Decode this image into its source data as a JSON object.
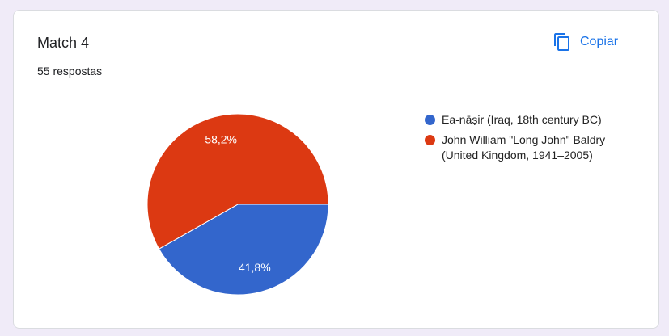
{
  "header": {
    "title": "Match 4",
    "subtitle": "55 respostas",
    "button": "Copiar"
  },
  "chart_data": {
    "type": "pie",
    "categories": [
      "Ea-nāṣir (Iraq, 18th century BC)",
      "John William \"Long John\" Baldry (United Kingdom, 1941–2005)"
    ],
    "values": [
      41.8,
      58.2
    ],
    "value_labels": [
      "41,8%",
      "58,2%"
    ],
    "colors": [
      "#3366cc",
      "#dc3912"
    ],
    "legend": "right"
  }
}
